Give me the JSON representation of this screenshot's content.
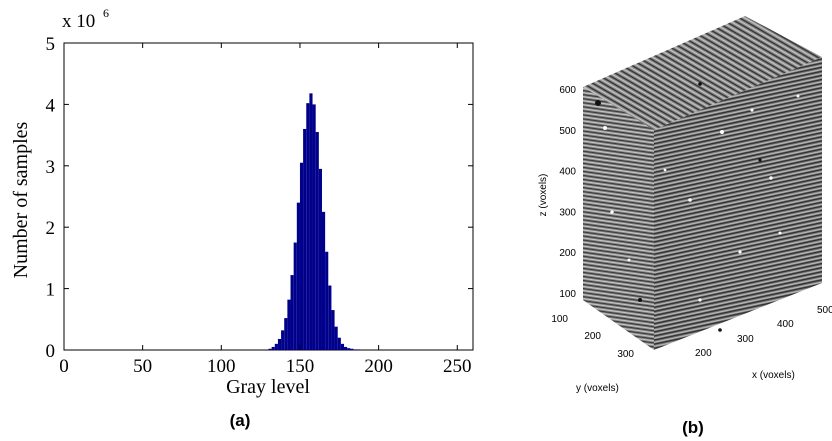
{
  "chart_data": [
    {
      "type": "bar",
      "panel_label": "(a)",
      "title": "",
      "xlabel": "Gray level",
      "ylabel": "Number of samples",
      "y_multiplier": "x 10",
      "y_multiplier_exponent": "6",
      "xlim": [
        0,
        260
      ],
      "ylim": [
        0,
        5
      ],
      "x_ticks": [
        0,
        50,
        100,
        150,
        200,
        250
      ],
      "y_ticks": [
        0,
        1,
        2,
        3,
        4,
        5
      ],
      "bar_color": "#00008b",
      "grid": false,
      "bins": [
        130,
        132,
        134,
        136,
        138,
        140,
        142,
        144,
        146,
        148,
        150,
        152,
        154,
        156,
        158,
        160,
        162,
        164,
        166,
        168,
        170,
        172,
        174,
        176,
        178,
        180,
        182,
        184,
        186
      ],
      "values": [
        0.02,
        0.05,
        0.1,
        0.18,
        0.32,
        0.52,
        0.82,
        1.22,
        1.75,
        2.4,
        3.05,
        3.6,
        4.02,
        4.18,
        4.0,
        3.55,
        2.95,
        2.25,
        1.6,
        1.05,
        0.65,
        0.38,
        0.2,
        0.1,
        0.05,
        0.03,
        0.02,
        0.01,
        0.01
      ]
    },
    {
      "type": "other",
      "panel_label": "(b)",
      "description_kind": "3d-volume",
      "xlabel": "x (voxels)",
      "ylabel": "y (voxels)",
      "zlabel": "z (voxels)",
      "x_ticks": [
        200,
        300,
        400,
        500
      ],
      "y_ticks": [
        100,
        200,
        300
      ],
      "z_ticks": [
        100,
        200,
        300,
        400,
        500,
        600
      ]
    }
  ]
}
